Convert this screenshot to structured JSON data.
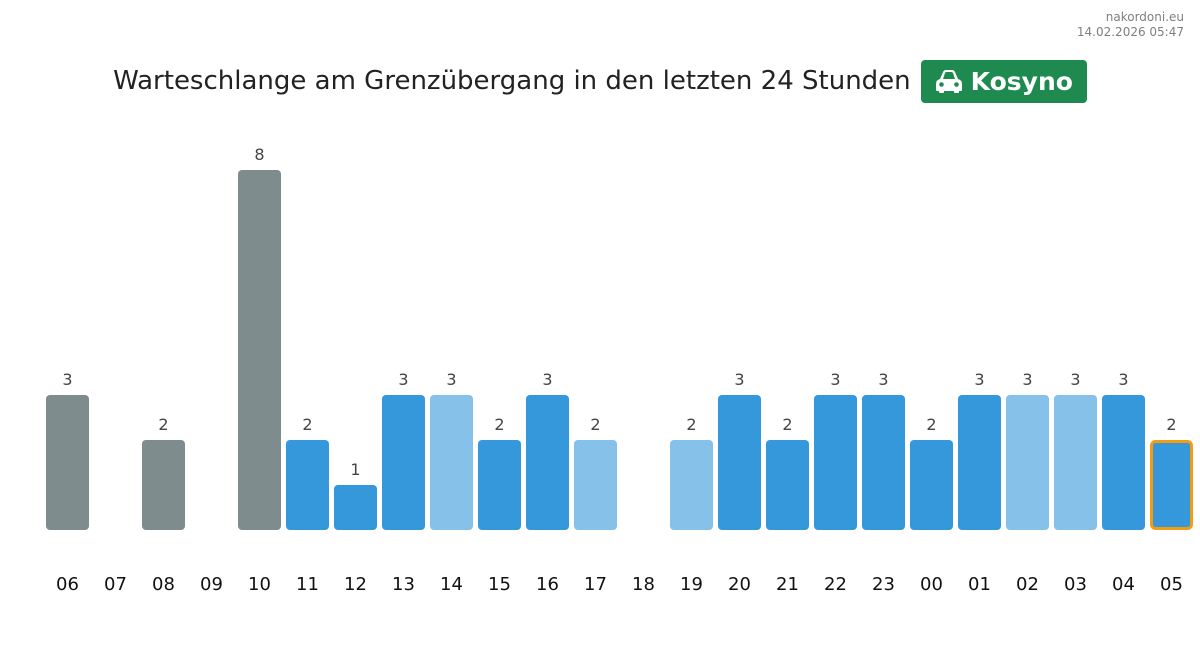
{
  "header": {
    "site": "nakordoni.eu",
    "timestamp": "14.02.2026 05:47"
  },
  "title": "Warteschlange am Grenzübergang in den letzten 24 Stunden",
  "badge": {
    "icon": "car-icon",
    "label": "Kosyno",
    "color": "#1e8a4f"
  },
  "colors": {
    "past_day": "#7f8c8d",
    "dark_blue": "#3498db",
    "light_blue": "#85c1e9",
    "highlight_border": "#f39c12"
  },
  "chart_data": {
    "type": "bar",
    "title": "Warteschlange am Grenzübergang in den letzten 24 Stunden",
    "xlabel": "",
    "ylabel": "",
    "ylim": [
      0,
      8
    ],
    "grid": false,
    "categories": [
      "06",
      "07",
      "08",
      "09",
      "10",
      "11",
      "12",
      "13",
      "14",
      "15",
      "16",
      "17",
      "18",
      "19",
      "20",
      "21",
      "22",
      "23",
      "00",
      "01",
      "02",
      "03",
      "04",
      "05"
    ],
    "values": [
      3,
      null,
      2,
      null,
      8,
      2,
      1,
      3,
      3,
      2,
      3,
      2,
      null,
      2,
      3,
      2,
      3,
      3,
      2,
      3,
      3,
      3,
      3,
      2
    ],
    "bar_colors": [
      "past_day",
      "past_day",
      "past_day",
      "past_day",
      "past_day",
      "dark_blue",
      "dark_blue",
      "dark_blue",
      "light_blue",
      "dark_blue",
      "dark_blue",
      "light_blue",
      "light_blue",
      "light_blue",
      "dark_blue",
      "dark_blue",
      "dark_blue",
      "dark_blue",
      "dark_blue",
      "dark_blue",
      "light_blue",
      "light_blue",
      "dark_blue",
      "dark_blue"
    ],
    "highlighted": "05"
  }
}
